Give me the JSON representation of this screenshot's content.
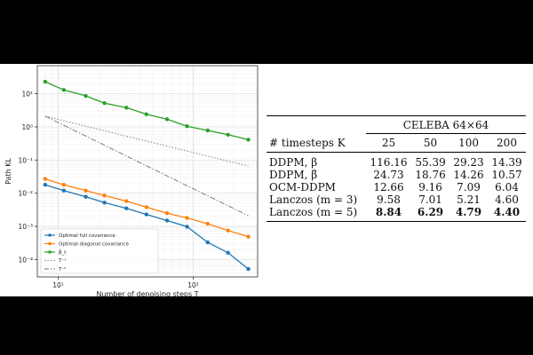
{
  "chart_data": {
    "type": "line",
    "xscale": "log",
    "yscale": "log",
    "xlim": [
      7,
      300
    ],
    "ylim": [
      3e-05,
      70
    ],
    "xlabel": "Number of denoising steps T",
    "ylabel": "Path KL",
    "xticks": [
      {
        "value": 10,
        "label": "10¹"
      },
      {
        "value": 100,
        "label": "10²"
      }
    ],
    "yticks": [
      {
        "value": 0.0001,
        "label": "10⁻⁴"
      },
      {
        "value": 0.001,
        "label": "10⁻³"
      },
      {
        "value": 0.01,
        "label": "10⁻²"
      },
      {
        "value": 0.1,
        "label": "10⁻¹"
      },
      {
        "value": 1,
        "label": "10⁰"
      },
      {
        "value": 10,
        "label": "10¹"
      }
    ],
    "grid": true,
    "legend_position": "bottom-left",
    "series": [
      {
        "name": "Optimal full covariance",
        "color": "#1f77b4",
        "marker": "o",
        "x": [
          8,
          11,
          16,
          22,
          32,
          45,
          64,
          90,
          128,
          181,
          256
        ],
        "y": [
          0.018,
          0.012,
          0.0078,
          0.0052,
          0.0035,
          0.0023,
          0.0015,
          0.00098,
          0.00033,
          0.00016,
          5.2e-05
        ]
      },
      {
        "name": "Optimal diagonal covariance",
        "color": "#ff7f0e",
        "marker": "o",
        "x": [
          8,
          11,
          16,
          22,
          32,
          45,
          64,
          90,
          128,
          181,
          256
        ],
        "y": [
          0.027,
          0.018,
          0.012,
          0.0085,
          0.0058,
          0.0038,
          0.0025,
          0.0018,
          0.0012,
          0.00075,
          0.00049
        ]
      },
      {
        "name": "β̃_t",
        "color": "#2ca02c",
        "marker": "o",
        "x": [
          8,
          11,
          16,
          22,
          32,
          45,
          64,
          90,
          128,
          181,
          256
        ],
        "y": [
          23,
          13,
          8.6,
          5.2,
          3.8,
          2.4,
          1.7,
          1.05,
          0.78,
          0.58,
          0.41
        ]
      },
      {
        "name": "T⁻¹",
        "color": "#999999",
        "style": "dotted",
        "x": [
          8,
          256
        ],
        "y": [
          2.1,
          0.066
        ]
      },
      {
        "name": "T⁻²",
        "color": "#888888",
        "style": "dashdot",
        "x": [
          8,
          256
        ],
        "y": [
          2.1,
          0.0021
        ]
      }
    ]
  },
  "table": {
    "group_header": "CELEBA 64×64",
    "row_header_label": "# timesteps K",
    "columns": [
      "25",
      "50",
      "100",
      "200"
    ],
    "rows": [
      {
        "label": "DDPM, β",
        "values": [
          "116.16",
          "55.39",
          "29.23",
          "14.39"
        ],
        "bold": false
      },
      {
        "label": "DDPM, β̃",
        "values": [
          "24.73",
          "18.76",
          "14.26",
          "10.57"
        ],
        "bold": false
      },
      {
        "label": "OCM-DDPM",
        "values": [
          "12.66",
          "9.16",
          "7.09",
          "6.04"
        ],
        "bold": false
      },
      {
        "label": "Lanczos (m = 3)",
        "values": [
          "9.58",
          "7.01",
          "5.21",
          "4.60"
        ],
        "bold": false
      },
      {
        "label": "Lanczos (m = 5)",
        "values": [
          "8.84",
          "6.29",
          "4.79",
          "4.40"
        ],
        "bold": true
      }
    ]
  }
}
